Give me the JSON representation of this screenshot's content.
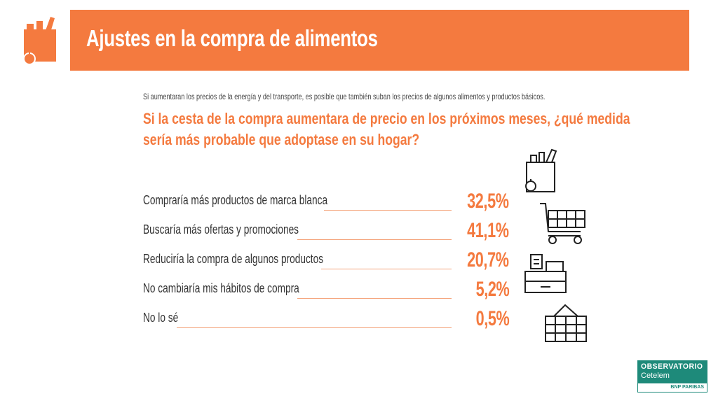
{
  "header": {
    "title": "Ajustes en la compra de alimentos"
  },
  "intro_text": "Si aumentaran los precios de la energía y del transporte, es posible que también suban los precios de algunos alimentos y productos básicos.",
  "question": {
    "line1": "Si la cesta de la compra aumentara de precio en los próximos meses, ¿qué medida",
    "line2": "sería más probable que adoptase en su hogar?"
  },
  "chart_data": {
    "type": "table",
    "title": "Si la cesta de la compra aumentara de precio en los próximos meses, ¿qué medida sería más probable que adoptase en su hogar?",
    "categories": [
      "Compraría más productos de marca blanca",
      "Buscaría más ofertas y promociones",
      "Reduciría la compra de algunos productos",
      "No cambiaría mis hábitos de compra",
      "No lo sé"
    ],
    "values": [
      32.5,
      41.1,
      20.7,
      5.2,
      0.5
    ],
    "value_labels": [
      "32,5%",
      "41,1%",
      "20,7%",
      "5,2%",
      "0,5%"
    ],
    "unit": "%"
  },
  "brand": {
    "name": "OBSERVATORIO",
    "sub": "Cetelem",
    "group": "BNP PARIBAS"
  },
  "colors": {
    "accent": "#F47A3F",
    "brand": "#1E8A7A"
  }
}
